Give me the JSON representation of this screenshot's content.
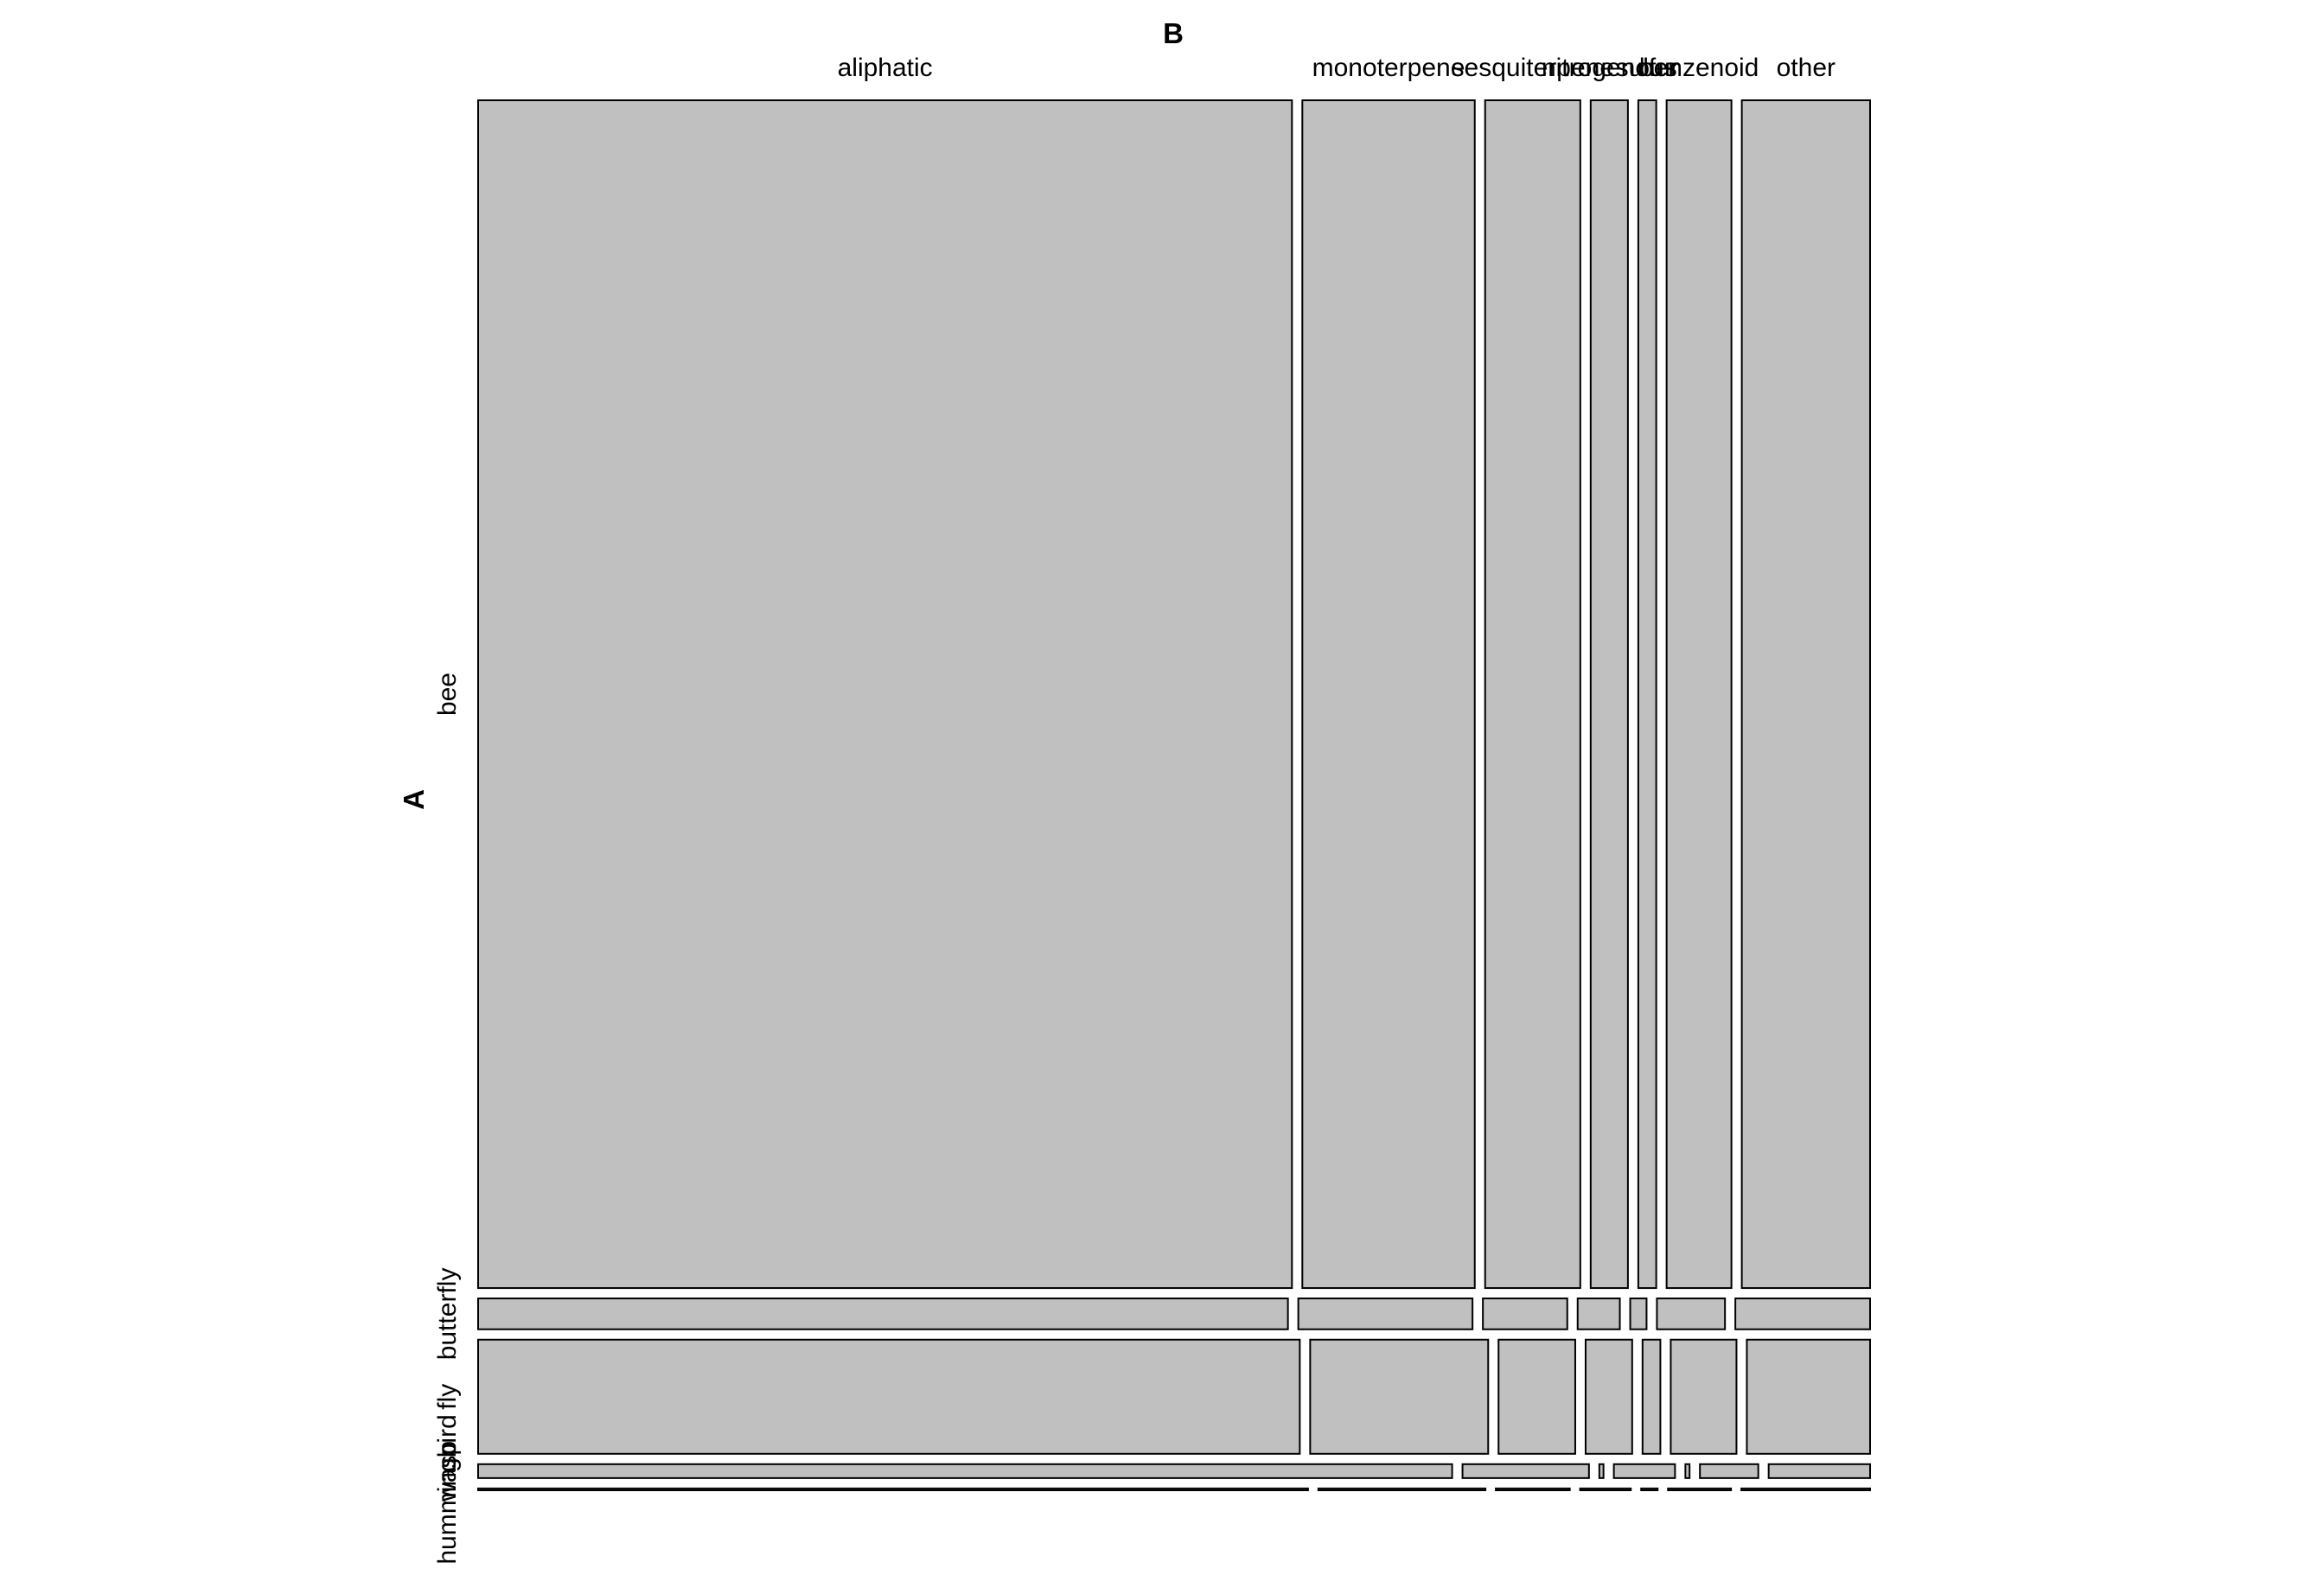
{
  "chart_data": {
    "type": "mosaic",
    "row_axis_title": "A",
    "column_axis_title": "B",
    "rows": [
      "bee",
      "butterfly",
      "fly",
      "wasp",
      "hummingbird"
    ],
    "columns": [
      "aliphatic",
      "monoterpene",
      "sesquiterpene",
      "nitrogenous",
      "sulfur",
      "benzenoid",
      "other"
    ],
    "row_totals": [
      3850,
      100,
      370,
      45,
      6
    ],
    "proportions": [
      [
        0.59,
        0.125,
        0.069,
        0.027,
        0.013,
        0.047,
        0.093
      ],
      [
        0.595,
        0.128,
        0.062,
        0.031,
        0.012,
        0.05,
        0.099
      ],
      [
        0.6,
        0.13,
        0.056,
        0.034,
        0.013,
        0.048,
        0.09
      ],
      [
        0.701,
        0.091,
        0.003,
        0.044,
        0.003,
        0.042,
        0.073
      ],
      [
        0.606,
        0.122,
        0.054,
        0.037,
        0.012,
        0.046,
        0.094
      ]
    ],
    "fill_color": "#c0c0c0",
    "stroke_color": "#000000"
  }
}
